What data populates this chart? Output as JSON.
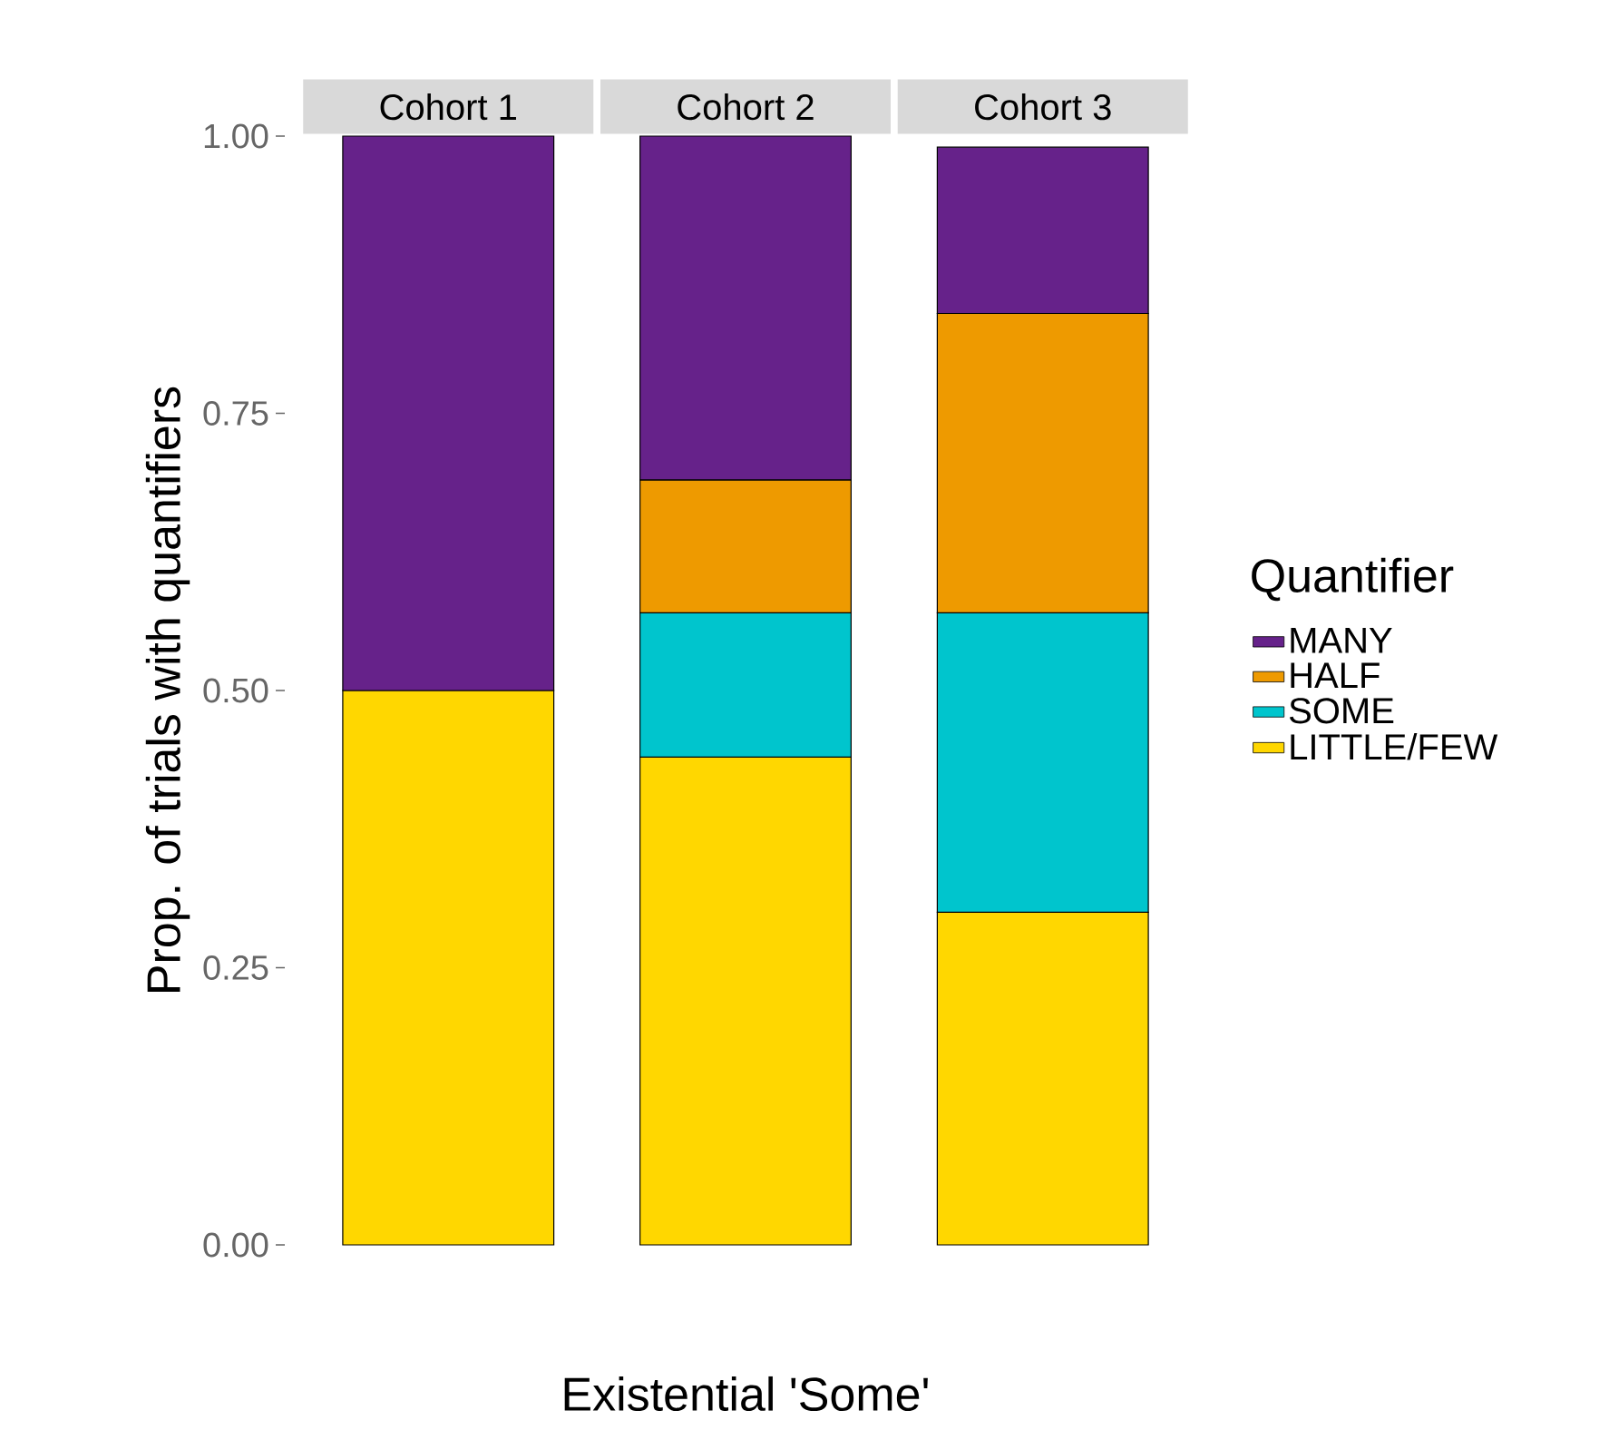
{
  "chart_data": {
    "type": "bar",
    "stacked": true,
    "xlabel": "Existential 'Some'",
    "ylabel": "Prop. of trials with quantifiers",
    "legend_title": "Quantifier",
    "legend": "right",
    "categories": [
      "Cohort 1",
      "Cohort 2",
      "Cohort 3"
    ],
    "series": [
      {
        "name": "LITTLE/FEW",
        "color": "#ffd700",
        "values": [
          0.5,
          0.44,
          0.3
        ]
      },
      {
        "name": "SOME",
        "color": "#00c5cd",
        "values": [
          null,
          0.13,
          0.27
        ]
      },
      {
        "name": "HALF",
        "color": "#ee9a00",
        "values": [
          null,
          0.12,
          0.27
        ]
      },
      {
        "name": "MANY",
        "color": "#66228a",
        "values": [
          0.5,
          0.31,
          0.15
        ]
      }
    ],
    "ylim": [
      0,
      1.0
    ],
    "yticks": [
      {
        "value": 0,
        "label": "0.00"
      },
      {
        "value": 0.25,
        "label": "0.25"
      },
      {
        "value": 0.5,
        "label": "0.50"
      },
      {
        "value": 0.75,
        "label": "0.75"
      },
      {
        "value": 1.0,
        "label": "1.00"
      }
    ]
  }
}
